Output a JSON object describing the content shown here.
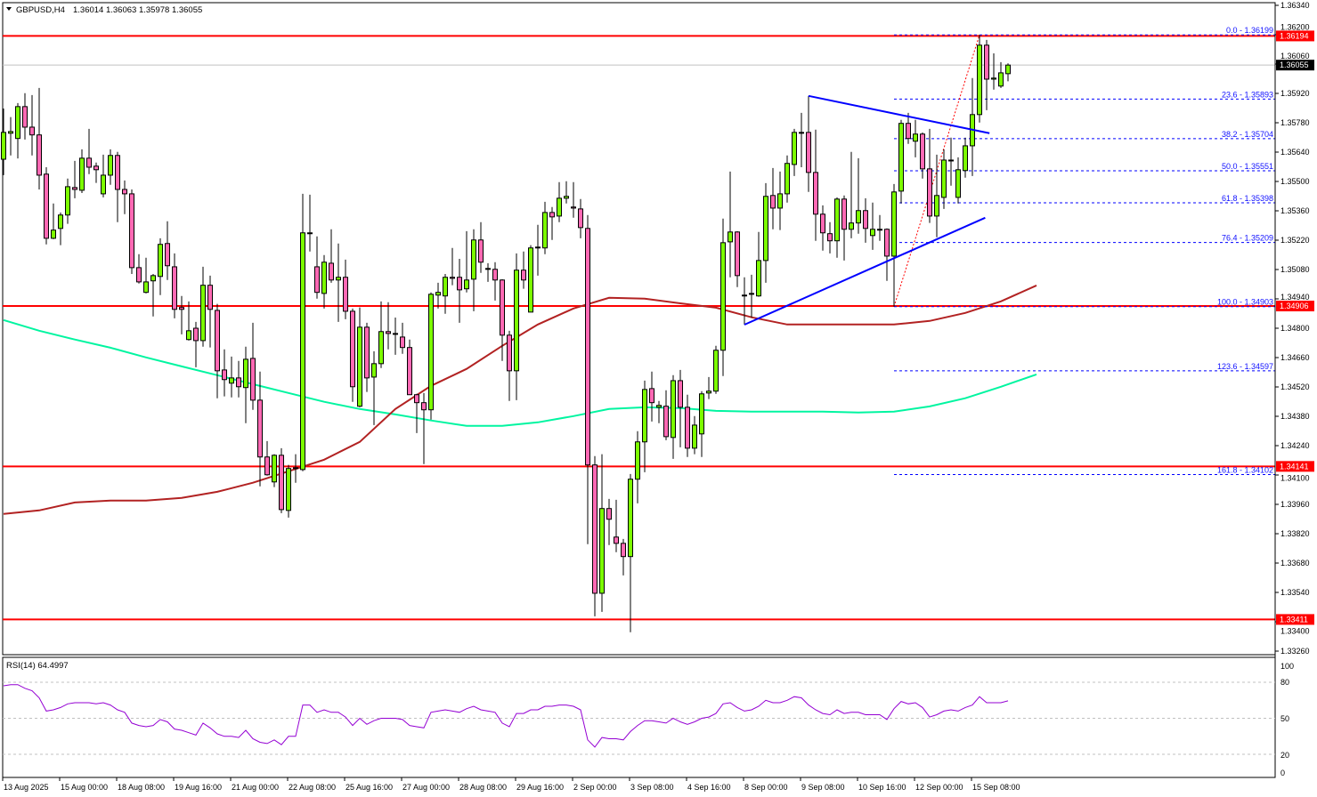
{
  "header": {
    "symbol": "GBPUSD,H4",
    "ohlc": "1.36014 1.36063 1.35978 1.36055"
  },
  "colors": {
    "bull": "#7cfc00",
    "bear": "#ff69b4",
    "ma_fast": "#b22222",
    "ma_slow": "#00f5a0",
    "levels": "#ff0000",
    "trend": "#0000ff",
    "fib": "#0000ff",
    "rsi": "#9400d3"
  },
  "chart_data": [
    {
      "type": "candlestick",
      "title": "GBPUSD,H4",
      "ylim": [
        1.3326,
        1.3634
      ],
      "grid": false,
      "price_ticks": [
        "1.36340",
        "1.36200",
        "1.36060",
        "1.35920",
        "1.35780",
        "1.35640",
        "1.35500",
        "1.35360",
        "1.35220",
        "1.35080",
        "1.34940",
        "1.34800",
        "1.34660",
        "1.34520",
        "1.34380",
        "1.34240",
        "1.34100",
        "1.33960",
        "1.33820",
        "1.33680",
        "1.33540",
        "1.33400",
        "1.33260"
      ],
      "time_labels": [
        "13 Aug 2025",
        "15 Aug 00:00",
        "18 Aug 08:00",
        "19 Aug 16:00",
        "21 Aug 00:00",
        "22 Aug 08:00",
        "25 Aug 16:00",
        "27 Aug 00:00",
        "28 Aug 08:00",
        "29 Aug 16:00",
        "2 Sep 00:00",
        "3 Sep 08:00",
        "4 Sep 16:00",
        "8 Sep 00:00",
        "9 Sep 08:00",
        "10 Sep 16:00",
        "12 Sep 00:00",
        "15 Sep 08:00"
      ],
      "candles_ohlc": [
        [
          1.35606,
          1.35848,
          1.3553,
          1.35734
        ],
        [
          1.3573,
          1.35807,
          1.35624,
          1.35738
        ],
        [
          1.35705,
          1.35874,
          1.3561,
          1.35857
        ],
        [
          1.35857,
          1.35921,
          1.357,
          1.35759
        ],
        [
          1.35759,
          1.35912,
          1.35624,
          1.35722
        ],
        [
          1.35722,
          1.35946,
          1.35462,
          1.3553
        ],
        [
          1.35535,
          1.35568,
          1.352,
          1.35229
        ],
        [
          1.35229,
          1.35395,
          1.35225,
          1.35268
        ],
        [
          1.35276,
          1.35352,
          1.35196,
          1.3534
        ],
        [
          1.3534,
          1.35514,
          1.35298,
          1.35475
        ],
        [
          1.35471,
          1.35598,
          1.3542,
          1.35462
        ],
        [
          1.35458,
          1.35653,
          1.35445,
          1.35611
        ],
        [
          1.35611,
          1.35751,
          1.35535,
          1.35568
        ],
        [
          1.35573,
          1.3559,
          1.35493,
          1.35556
        ],
        [
          1.35441,
          1.35628,
          1.35424,
          1.3553
        ],
        [
          1.3553,
          1.35653,
          1.35484,
          1.35624
        ],
        [
          1.35624,
          1.35641,
          1.35306,
          1.35462
        ],
        [
          1.35462,
          1.35505,
          1.35344,
          1.35441
        ],
        [
          1.35441,
          1.35462,
          1.35059,
          1.35089
        ],
        [
          1.35089,
          1.35153,
          1.35013,
          1.35021
        ],
        [
          1.34971,
          1.35136,
          1.34966,
          1.35021
        ],
        [
          1.35026,
          1.35059,
          1.34856,
          1.35051
        ],
        [
          1.35047,
          1.35229,
          1.34958,
          1.352
        ],
        [
          1.35204,
          1.3531,
          1.3503,
          1.35098
        ],
        [
          1.35093,
          1.35157,
          1.34847,
          1.3489
        ],
        [
          1.34899,
          1.34954,
          1.34771,
          1.3489
        ],
        [
          1.34746,
          1.34928,
          1.34741,
          1.34788
        ],
        [
          1.348,
          1.3483,
          1.34614,
          1.34741
        ],
        [
          1.34741,
          1.35093,
          1.34712,
          1.35005
        ],
        [
          1.35005,
          1.35051,
          1.34708,
          1.3489
        ],
        [
          1.34885,
          1.34916,
          1.34466,
          1.34597
        ],
        [
          1.34601,
          1.34699,
          1.34475,
          1.34555
        ],
        [
          1.34538,
          1.34665,
          1.3447,
          1.34563
        ],
        [
          1.34563,
          1.34644,
          1.3447,
          1.34521
        ],
        [
          1.34517,
          1.34712,
          1.34347,
          1.34652
        ],
        [
          1.34656,
          1.34826,
          1.34411,
          1.34457
        ],
        [
          1.34457,
          1.34593,
          1.34046,
          1.34186
        ],
        [
          1.34186,
          1.34262,
          1.34097,
          1.34101
        ],
        [
          1.34067,
          1.34199,
          1.34042,
          1.34194
        ],
        [
          1.34194,
          1.34228,
          1.33918,
          1.33935
        ],
        [
          1.33931,
          1.34148,
          1.33897,
          1.34131
        ],
        [
          1.34131,
          1.34199,
          1.34063,
          1.34135
        ],
        [
          1.34126,
          1.35441,
          1.34118,
          1.35255
        ],
        [
          1.35255,
          1.35437,
          1.35166,
          1.35251
        ],
        [
          1.35093,
          1.35238,
          1.34941,
          1.34971
        ],
        [
          1.34966,
          1.35149,
          1.34894,
          1.35115
        ],
        [
          1.3511,
          1.35272,
          1.35017,
          1.3503
        ],
        [
          1.3503,
          1.35204,
          1.3483,
          1.35043
        ],
        [
          1.35043,
          1.35127,
          1.34843,
          1.34881
        ],
        [
          1.34881,
          1.34894,
          1.34449,
          1.34521
        ],
        [
          1.34428,
          1.34899,
          1.34423,
          1.34805
        ],
        [
          1.34805,
          1.34826,
          1.34496,
          1.34563
        ],
        [
          1.34567,
          1.3469,
          1.34338,
          1.34631
        ],
        [
          1.34631,
          1.34928,
          1.3461,
          1.34784
        ],
        [
          1.34784,
          1.34924,
          1.34699,
          1.34775
        ],
        [
          1.34775,
          1.34851,
          1.34673,
          1.34771
        ],
        [
          1.34758,
          1.34826,
          1.34678,
          1.34708
        ],
        [
          1.34708,
          1.34746,
          1.34483,
          1.34483
        ],
        [
          1.34483,
          1.34487,
          1.343,
          1.34445
        ],
        [
          1.34445,
          1.34491,
          1.34152,
          1.34411
        ],
        [
          1.34411,
          1.34971,
          1.34364,
          1.34962
        ],
        [
          1.34958,
          1.35017,
          1.34894,
          1.34971
        ],
        [
          1.34954,
          1.35059,
          1.34869,
          1.35043
        ],
        [
          1.35043,
          1.35183,
          1.35005,
          1.35038
        ],
        [
          1.35043,
          1.35131,
          1.34826,
          1.34983
        ],
        [
          1.34988,
          1.35263,
          1.34971,
          1.3503
        ],
        [
          1.35034,
          1.35272,
          1.34881,
          1.35221
        ],
        [
          1.35221,
          1.35306,
          1.35064,
          1.35115
        ],
        [
          1.35085,
          1.3511,
          1.35021,
          1.35081
        ],
        [
          1.35081,
          1.35115,
          1.34932,
          1.3503
        ],
        [
          1.3503,
          1.35034,
          1.34644,
          1.34767
        ],
        [
          1.34767,
          1.34788,
          1.34453,
          1.34597
        ],
        [
          1.34597,
          1.35157,
          1.34457,
          1.35077
        ],
        [
          1.35077,
          1.35166,
          1.34988,
          1.3503
        ],
        [
          1.34877,
          1.35196,
          1.34877,
          1.35183
        ],
        [
          1.35183,
          1.35293,
          1.35051,
          1.35187
        ],
        [
          1.35183,
          1.35403,
          1.35153,
          1.35352
        ],
        [
          1.35352,
          1.35378,
          1.35221,
          1.35331
        ],
        [
          1.35335,
          1.35497,
          1.35306,
          1.3542
        ],
        [
          1.3542,
          1.35501,
          1.35395,
          1.35429
        ],
        [
          1.35378,
          1.35497,
          1.35327,
          1.35373
        ],
        [
          1.35369,
          1.35416,
          1.35229,
          1.3528
        ],
        [
          1.35276,
          1.3534,
          1.3377,
          1.34148
        ],
        [
          1.34148,
          1.3419,
          1.33426,
          1.33536
        ],
        [
          1.33536,
          1.34199,
          1.33447,
          1.3394
        ],
        [
          1.3394,
          1.33986,
          1.33766,
          1.33889
        ],
        [
          1.33804,
          1.33982,
          1.33732,
          1.33774
        ],
        [
          1.33774,
          1.33795,
          1.33621,
          1.33711
        ],
        [
          1.33711,
          1.34105,
          1.3335,
          1.3408
        ],
        [
          1.3408,
          1.34309,
          1.33965,
          1.34258
        ],
        [
          1.34258,
          1.3455,
          1.34113,
          1.34508
        ],
        [
          1.34512,
          1.34593,
          1.34355,
          1.34445
        ],
        [
          1.34423,
          1.34453,
          1.34347,
          1.34432
        ],
        [
          1.34428,
          1.34504,
          1.34266,
          1.34283
        ],
        [
          1.34279,
          1.34576,
          1.34177,
          1.3455
        ],
        [
          1.3455,
          1.34601,
          1.34232,
          1.34423
        ],
        [
          1.34423,
          1.34483,
          1.34186,
          1.34228
        ],
        [
          1.34228,
          1.34381,
          1.34199,
          1.34338
        ],
        [
          1.34296,
          1.345,
          1.34186,
          1.34487
        ],
        [
          1.34491,
          1.34567,
          1.34462,
          1.345
        ],
        [
          1.345,
          1.34716,
          1.34487,
          1.34695
        ],
        [
          1.34695,
          1.35323,
          1.34572,
          1.35208
        ],
        [
          1.35212,
          1.35547,
          1.35043,
          1.35259
        ],
        [
          1.35259,
          1.35263,
          1.34996,
          1.35051
        ],
        [
          1.34954,
          1.35043,
          1.34817,
          1.34958
        ],
        [
          1.34962,
          1.35055,
          1.34851,
          1.34966
        ],
        [
          1.34954,
          1.35259,
          1.3495,
          1.35123
        ],
        [
          1.35123,
          1.35492,
          1.35017,
          1.35429
        ],
        [
          1.35433,
          1.35564,
          1.35272,
          1.35373
        ],
        [
          1.35373,
          1.35547,
          1.35268,
          1.35441
        ],
        [
          1.35441,
          1.35624,
          1.35399,
          1.35586
        ],
        [
          1.35581,
          1.35751,
          1.35526,
          1.35734
        ],
        [
          1.3573,
          1.35827,
          1.35568,
          1.35734
        ],
        [
          1.35734,
          1.35908,
          1.3545,
          1.35543
        ],
        [
          1.35543,
          1.35747,
          1.35217,
          1.35344
        ],
        [
          1.35344,
          1.35386,
          1.3517,
          1.35255
        ],
        [
          1.35251,
          1.35306,
          1.35157,
          1.35217
        ],
        [
          1.35217,
          1.35424,
          1.35136,
          1.35416
        ],
        [
          1.35416,
          1.35433,
          1.35123,
          1.35272
        ],
        [
          1.35272,
          1.35641,
          1.35229,
          1.35302
        ],
        [
          1.35302,
          1.35611,
          1.35251,
          1.35361
        ],
        [
          1.35361,
          1.3542,
          1.35208,
          1.35276
        ],
        [
          1.35242,
          1.35399,
          1.35174,
          1.35272
        ],
        [
          1.35268,
          1.3534,
          1.35217,
          1.35272
        ],
        [
          1.35272,
          1.35276,
          1.35026,
          1.35144
        ],
        [
          1.35144,
          1.35488,
          1.34903,
          1.3545
        ],
        [
          1.35454,
          1.35794,
          1.35395,
          1.35777
        ],
        [
          1.35777,
          1.35827,
          1.35679,
          1.35705
        ],
        [
          1.35692,
          1.35794,
          1.35615,
          1.35726
        ],
        [
          1.35726,
          1.35734,
          1.35514,
          1.3556
        ],
        [
          1.3556,
          1.35751,
          1.35302,
          1.35335
        ],
        [
          1.35335,
          1.35628,
          1.35234,
          1.35433
        ],
        [
          1.35424,
          1.35653,
          1.35369,
          1.35602
        ],
        [
          1.35598,
          1.35709,
          1.3548,
          1.35602
        ],
        [
          1.35424,
          1.35615,
          1.35395,
          1.35556
        ],
        [
          1.35552,
          1.35709,
          1.35518,
          1.3567
        ],
        [
          1.3567,
          1.35993,
          1.35526,
          1.35819
        ],
        [
          1.35819,
          1.36199,
          1.35781,
          1.3615
        ],
        [
          1.3615,
          1.36175,
          1.3584,
          1.35988
        ],
        [
          1.35988,
          1.36111,
          1.35938,
          1.35993
        ],
        [
          1.35955,
          1.36069,
          1.35946,
          1.36018
        ],
        [
          1.36014,
          1.36063,
          1.35978,
          1.36055
        ]
      ],
      "ma_fast_every5bars": [
        1.33914,
        1.33931,
        1.33969,
        1.33978,
        1.33978,
        1.33991,
        1.3402,
        1.34063,
        1.34118,
        1.34173,
        1.34258,
        1.34415,
        1.34525,
        1.34606,
        1.34716,
        1.34818,
        1.34894,
        1.34945,
        1.34941,
        1.34919,
        1.34898,
        1.34852,
        1.34818,
        1.34818,
        1.34818,
        1.34818,
        1.34835,
        1.34873,
        1.34928,
        1.35004
      ],
      "ma_slow_every5bars": [
        1.34839,
        1.34788,
        1.34746,
        1.34707,
        1.34661,
        1.34618,
        1.34576,
        1.34533,
        1.34491,
        1.34449,
        1.34415,
        1.34389,
        1.3436,
        1.34334,
        1.34334,
        1.34351,
        1.34381,
        1.34415,
        1.34423,
        1.34419,
        1.34406,
        1.34402,
        1.34402,
        1.34402,
        1.34398,
        1.34402,
        1.34427,
        1.34466,
        1.34521,
        1.3458
      ],
      "horizontal_levels": [
        {
          "price": 1.36194,
          "label": "1.36194"
        },
        {
          "price": 1.34906,
          "label": "1.34906"
        },
        {
          "price": 1.34141,
          "label": "1.34141"
        },
        {
          "price": 1.33411,
          "label": "1.33411"
        }
      ],
      "current_price": {
        "price": 1.36055,
        "label": "1.36055"
      },
      "trendlines": [
        {
          "from": {
            "bar": 113,
            "price": 1.35908
          },
          "to": {
            "bar": 138.4,
            "price": 1.3573
          }
        },
        {
          "from": {
            "bar": 104,
            "price": 1.34817
          },
          "to": {
            "bar": 137.8,
            "price": 1.35327
          }
        }
      ],
      "fibonacci": {
        "from": {
          "bar": 125,
          "price": 1.34903
        },
        "to": {
          "bar": 137,
          "price": 1.36199
        },
        "levels": [
          {
            "price": 1.36199,
            "label": "0.0 - 1.36199"
          },
          {
            "price": 1.35893,
            "label": "23.6 - 1.35893"
          },
          {
            "price": 1.35704,
            "label": "38.2 - 1.35704"
          },
          {
            "price": 1.35551,
            "label": "50.0 - 1.35551"
          },
          {
            "price": 1.35398,
            "label": "61.8 - 1.35398"
          },
          {
            "price": 1.35209,
            "label": "76.4 - 1.35209"
          },
          {
            "price": 1.34903,
            "label": "100.0 - 1.34903"
          },
          {
            "price": 1.34597,
            "label": "123.6 - 1.34597"
          },
          {
            "price": 1.34102,
            "label": "161.8 - 1.34102"
          }
        ]
      }
    },
    {
      "type": "line",
      "title": "RSI(14) 64.4997",
      "ylim": [
        0,
        100
      ],
      "levels": [
        80,
        50,
        20
      ],
      "ticks": [
        "100",
        "80",
        "50",
        "20",
        "0"
      ],
      "values": [
        77,
        78,
        78,
        75,
        73,
        67,
        56,
        57,
        59,
        62,
        63,
        63,
        63,
        62,
        63,
        61,
        57,
        55,
        46,
        44,
        43,
        44,
        49,
        47,
        41,
        40,
        38,
        36,
        46,
        42,
        37,
        35,
        35,
        34,
        40,
        33,
        30,
        29,
        32,
        28,
        35,
        35,
        61,
        61,
        55,
        57,
        55,
        55,
        51,
        44,
        50,
        45,
        48,
        50,
        50,
        50,
        49,
        44,
        43,
        42,
        55,
        56,
        57,
        56,
        55,
        58,
        60,
        57,
        56,
        55,
        46,
        43,
        54,
        54,
        57,
        57,
        60,
        60,
        61,
        61,
        60,
        57,
        32,
        26,
        34,
        33,
        33,
        32,
        39,
        44,
        48,
        48,
        47,
        46,
        50,
        47,
        45,
        47,
        50,
        51,
        54,
        62,
        63,
        59,
        56,
        57,
        60,
        65,
        63,
        63,
        65,
        68,
        67,
        61,
        57,
        54,
        53,
        57,
        54,
        55,
        55,
        53,
        53,
        53,
        49,
        58,
        64,
        62,
        63,
        59,
        51,
        53,
        56,
        57,
        56,
        59,
        61,
        68,
        63,
        63,
        63,
        64.4997
      ]
    }
  ]
}
